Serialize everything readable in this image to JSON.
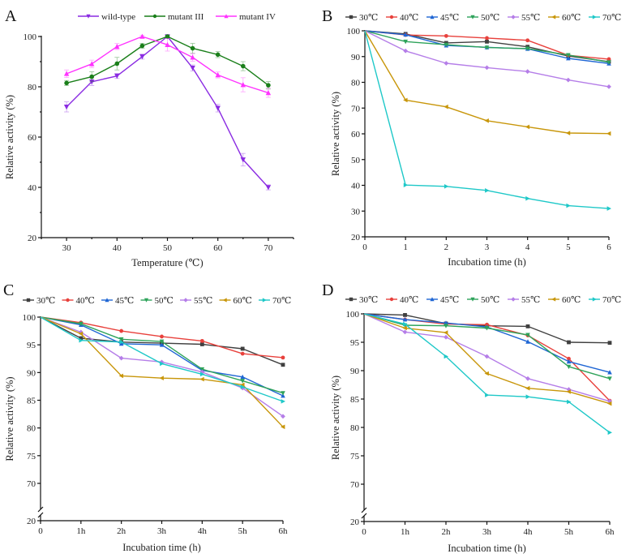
{
  "chart_data": [
    {
      "panel": "A",
      "type": "line",
      "title": "",
      "xlabel": "Temperature (℃)",
      "ylabel": "Relative activity (%)",
      "xlim": [
        25,
        75
      ],
      "ylim": [
        20,
        100
      ],
      "xticks": [
        30,
        40,
        50,
        60,
        70
      ],
      "yticks": [
        20,
        40,
        60,
        80,
        100
      ],
      "legend_position": "top",
      "x": [
        30,
        35,
        40,
        45,
        50,
        55,
        60,
        65,
        70
      ],
      "series": [
        {
          "name": "wild-type",
          "color": "#8a2be2",
          "marker": "triangle-down",
          "values": [
            72,
            82,
            84.3,
            92,
            100,
            87.5,
            71.5,
            51,
            40
          ],
          "errors": [
            2,
            1.5,
            1,
            1,
            0.5,
            1.2,
            1.5,
            2.5,
            1
          ]
        },
        {
          "name": "mutant III",
          "color": "#1a7f1a",
          "marker": "circle",
          "values": [
            81.5,
            84,
            89.2,
            96.3,
            100,
            95.3,
            92.8,
            88.2,
            80.6
          ],
          "errors": [
            1,
            2,
            2.5,
            1,
            0.5,
            2,
            1.2,
            1.8,
            1.5
          ]
        },
        {
          "name": "mutant IV",
          "color": "#ff33ff",
          "marker": "triangle-up",
          "values": [
            85.2,
            89.1,
            96,
            100,
            96.7,
            91.7,
            84.7,
            80.8,
            77.6
          ],
          "errors": [
            1.5,
            1.5,
            1.2,
            0.5,
            2.5,
            1.5,
            1.2,
            2.8,
            1.8
          ]
        }
      ]
    },
    {
      "panel": "B",
      "type": "line",
      "title": "",
      "xlabel": "Incubation time (h)",
      "ylabel": "Relative activity (%)",
      "xlim": [
        0,
        6
      ],
      "ylim": [
        20,
        100
      ],
      "xticks": [
        0,
        1,
        2,
        3,
        4,
        5,
        6
      ],
      "xtick_labels": [
        "0",
        "1",
        "2",
        "3",
        "4",
        "5",
        "6"
      ],
      "yticks": [
        20,
        30,
        40,
        50,
        60,
        70,
        80,
        90,
        100
      ],
      "legend_position": "top",
      "x": [
        0,
        1,
        2,
        3,
        4,
        5,
        6
      ],
      "series": [
        {
          "name": "30℃",
          "color": "#404040",
          "marker": "square",
          "values": [
            100,
            98.8,
            95.3,
            95.8,
            93.8,
            90.2,
            88
          ]
        },
        {
          "name": "40℃",
          "color": "#e8413c",
          "marker": "circle",
          "values": [
            100,
            98.4,
            98,
            97.2,
            96.3,
            90.5,
            89
          ]
        },
        {
          "name": "45℃",
          "color": "#1f66d4",
          "marker": "triangle-up",
          "values": [
            100,
            98.5,
            94.3,
            93.6,
            93,
            89.3,
            87.3
          ]
        },
        {
          "name": "50℃",
          "color": "#2ea35a",
          "marker": "triangle-down",
          "values": [
            100,
            95.8,
            94.6,
            93.5,
            93.1,
            90.6,
            87.8
          ]
        },
        {
          "name": "55℃",
          "color": "#b57ee8",
          "marker": "diamond",
          "values": [
            100,
            92.2,
            87.4,
            85.7,
            84.2,
            80.9,
            78.3
          ]
        },
        {
          "name": "60℃",
          "color": "#c8960a",
          "marker": "triangle-left",
          "values": [
            100,
            73.1,
            70.5,
            65.1,
            62.7,
            60.3,
            60.1
          ]
        },
        {
          "name": "70℃",
          "color": "#1ec8c8",
          "marker": "triangle-right",
          "values": [
            100,
            40.1,
            39.6,
            38,
            34.9,
            32.1,
            31
          ]
        }
      ]
    },
    {
      "panel": "C",
      "type": "line",
      "title": "",
      "xlabel": "Incubation time (h)",
      "ylabel": "Relative activity (%)",
      "xlim": [
        0,
        6
      ],
      "ylim": [
        20,
        100
      ],
      "y_axis_break": [
        20,
        67
      ],
      "xticks": [
        0,
        1,
        2,
        3,
        4,
        5,
        6
      ],
      "xtick_labels": [
        "0",
        "1h",
        "2h",
        "3h",
        "4h",
        "5h",
        "6h"
      ],
      "yticks": [
        20,
        70,
        75,
        80,
        85,
        90,
        95,
        100
      ],
      "legend_position": "top",
      "x": [
        0,
        1,
        2,
        3,
        4,
        5,
        6
      ],
      "series": [
        {
          "name": "30℃",
          "color": "#404040",
          "marker": "square",
          "values": [
            100,
            96.2,
            95.5,
            95.3,
            95.1,
            94.3,
            91.4
          ]
        },
        {
          "name": "40℃",
          "color": "#e8413c",
          "marker": "circle",
          "values": [
            100,
            99,
            97.5,
            96.5,
            95.7,
            93.4,
            92.7
          ]
        },
        {
          "name": "45℃",
          "color": "#1f66d4",
          "marker": "triangle-up",
          "values": [
            100,
            98.6,
            95.2,
            95,
            90.4,
            89.2,
            85.8
          ]
        },
        {
          "name": "50℃",
          "color": "#2ea35a",
          "marker": "triangle-down",
          "values": [
            100,
            98.8,
            96,
            95.6,
            90.6,
            88.5,
            86.3
          ]
        },
        {
          "name": "55℃",
          "color": "#b57ee8",
          "marker": "diamond",
          "values": [
            100,
            97.3,
            92.6,
            91.9,
            90.1,
            87.2,
            82.1
          ]
        },
        {
          "name": "60℃",
          "color": "#c8960a",
          "marker": "triangle-left",
          "values": [
            100,
            97,
            89.4,
            89,
            88.8,
            87.8,
            80.2
          ]
        },
        {
          "name": "70℃",
          "color": "#1ec8c8",
          "marker": "triangle-right",
          "values": [
            100,
            95.8,
            95.5,
            91.6,
            89.7,
            87.4,
            84.8
          ]
        }
      ]
    },
    {
      "panel": "D",
      "type": "line",
      "title": "",
      "xlabel": "Incubation time (h)",
      "ylabel": "Relative activity (%)",
      "xlim": [
        0,
        6
      ],
      "ylim": [
        20,
        100
      ],
      "y_axis_break": [
        20,
        67
      ],
      "xticks": [
        0,
        1,
        2,
        3,
        4,
        5,
        6
      ],
      "xtick_labels": [
        "0",
        "1h",
        "2h",
        "3h",
        "4h",
        "5h",
        "6h"
      ],
      "yticks": [
        20,
        70,
        75,
        80,
        85,
        90,
        95,
        100
      ],
      "legend_position": "top",
      "x": [
        0,
        1,
        2,
        3,
        4,
        5,
        6
      ],
      "series": [
        {
          "name": "30℃",
          "color": "#404040",
          "marker": "square",
          "values": [
            100,
            99.8,
            98.3,
            97.9,
            97.8,
            95,
            94.9
          ]
        },
        {
          "name": "40℃",
          "color": "#e8413c",
          "marker": "circle",
          "values": [
            100,
            99,
            98.2,
            98.1,
            96.2,
            92.1,
            84.7
          ]
        },
        {
          "name": "45℃",
          "color": "#1f66d4",
          "marker": "triangle-up",
          "values": [
            100,
            99,
            98.4,
            97.7,
            95.1,
            91.6,
            89.7
          ]
        },
        {
          "name": "50℃",
          "color": "#2ea35a",
          "marker": "triangle-down",
          "values": [
            100,
            98,
            97.9,
            97.5,
            96.3,
            90.7,
            88.6
          ]
        },
        {
          "name": "55℃",
          "color": "#b57ee8",
          "marker": "diamond",
          "values": [
            100,
            96.8,
            95.9,
            92.5,
            88.6,
            86.7,
            84.6
          ]
        },
        {
          "name": "60℃",
          "color": "#c8960a",
          "marker": "triangle-left",
          "values": [
            100,
            97.5,
            96.7,
            89.5,
            86.9,
            86.3,
            84.2
          ]
        },
        {
          "name": "70℃",
          "color": "#1ec8c8",
          "marker": "triangle-right",
          "values": [
            100,
            98.2,
            92.5,
            85.7,
            85.4,
            84.5,
            79.1
          ]
        }
      ]
    }
  ]
}
